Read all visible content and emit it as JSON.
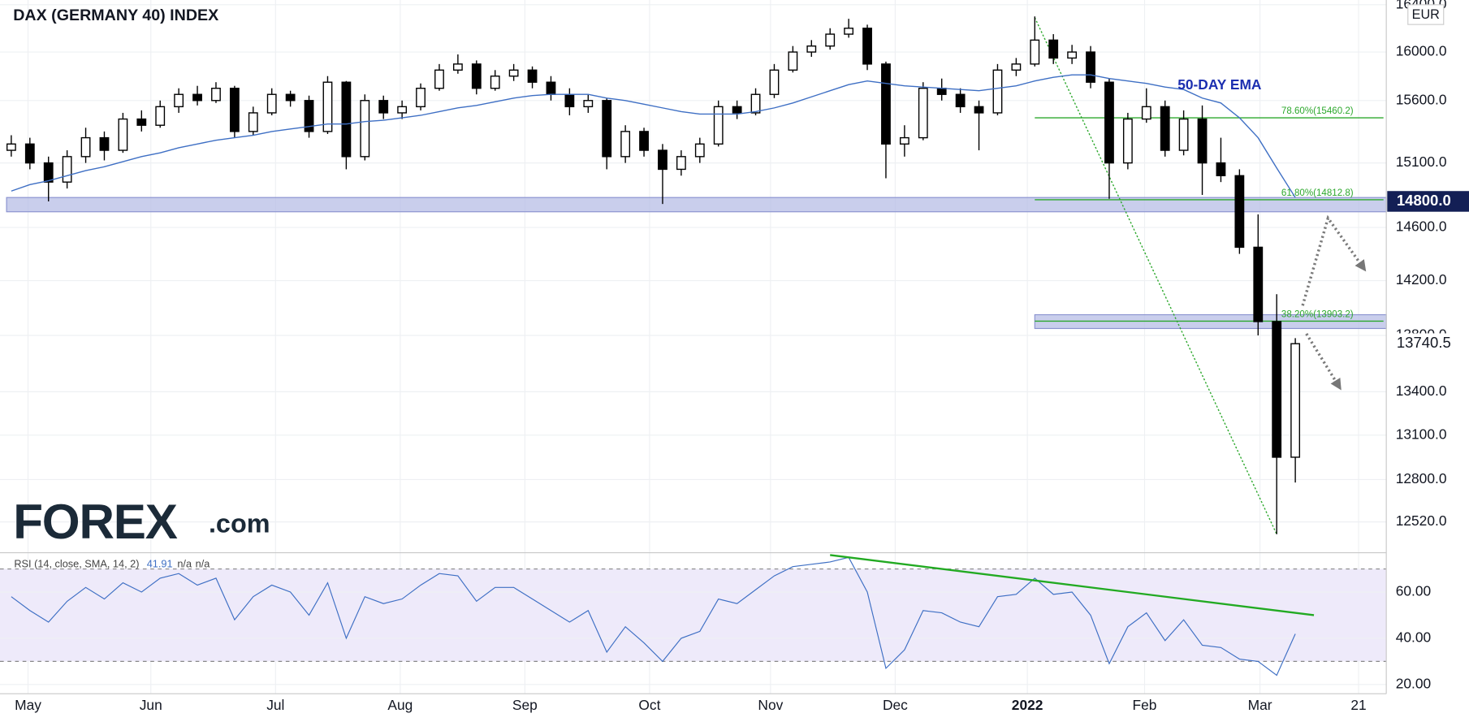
{
  "chart_data": [
    {
      "type": "candlestick",
      "title": "DAX (GERMANY 40) INDEX",
      "currency": "EUR",
      "log_scale": true,
      "grid": true,
      "categories": [
        null,
        null,
        null,
        null,
        null,
        null,
        null,
        null,
        null,
        null,
        null,
        null,
        null,
        null,
        null,
        null,
        null,
        null,
        null,
        null,
        null,
        null,
        null,
        null,
        null,
        null,
        null,
        null,
        null,
        null,
        null,
        null,
        null,
        null,
        null,
        null,
        null,
        null,
        null,
        null,
        null,
        null,
        null,
        null,
        null,
        null,
        null,
        null,
        null,
        null,
        null,
        null,
        null,
        null,
        null,
        null,
        null,
        null,
        null,
        null,
        null,
        null,
        null,
        null,
        null,
        null,
        null,
        null,
        null,
        null
      ],
      "open": [
        15200,
        15250,
        15100,
        14950,
        15150,
        15300,
        15200,
        15450,
        15400,
        15550,
        15650,
        15600,
        15700,
        15350,
        15500,
        15650,
        15600,
        15350,
        15750,
        15150,
        15600,
        15500,
        15550,
        15700,
        15850,
        15900,
        15700,
        15800,
        15850,
        15750,
        15650,
        15550,
        15600,
        15150,
        15350,
        15200,
        15050,
        15150,
        15250,
        15550,
        15500,
        15650,
        15850,
        16000,
        16050,
        16150,
        16200,
        15900,
        15250,
        15300,
        15700,
        15650,
        15550,
        15500,
        15850,
        15900,
        16100,
        15950,
        16000,
        15750,
        15100,
        15450,
        15550,
        15200,
        15450,
        15100,
        15000,
        14450,
        13900,
        12950
      ],
      "high": [
        15320,
        15300,
        15150,
        15200,
        15380,
        15350,
        15500,
        15520,
        15600,
        15700,
        15720,
        15750,
        15720,
        15550,
        15700,
        15680,
        15640,
        15800,
        15760,
        15650,
        15640,
        15600,
        15740,
        15900,
        15980,
        15930,
        15850,
        15900,
        15880,
        15800,
        15700,
        15650,
        15620,
        15400,
        15380,
        15250,
        15200,
        15300,
        15600,
        15600,
        15700,
        15900,
        16050,
        16100,
        16200,
        16280,
        16230,
        15920,
        15400,
        15750,
        15780,
        15700,
        15600,
        15900,
        15950,
        16300,
        16150,
        16060,
        16050,
        15780,
        15500,
        15700,
        15600,
        15520,
        15560,
        15300,
        15050,
        14700,
        14100,
        13780
      ],
      "low": [
        15150,
        15050,
        14800,
        14900,
        15100,
        15120,
        15180,
        15350,
        15380,
        15500,
        15560,
        15580,
        15300,
        15320,
        15480,
        15550,
        15300,
        15330,
        15050,
        15120,
        15450,
        15450,
        15520,
        15680,
        15820,
        15650,
        15680,
        15760,
        15700,
        15600,
        15480,
        15500,
        15050,
        15100,
        15150,
        14780,
        15000,
        15100,
        15230,
        15450,
        15480,
        15620,
        15830,
        15960,
        16020,
        16120,
        15850,
        14980,
        15150,
        15280,
        15600,
        15500,
        15200,
        15480,
        15800,
        15880,
        15900,
        15900,
        15700,
        14820,
        15050,
        15420,
        15150,
        15160,
        14850,
        14950,
        14400,
        13800,
        12440,
        12780
      ],
      "close": [
        15250,
        15100,
        14950,
        15150,
        15300,
        15200,
        15450,
        15400,
        15550,
        15650,
        15600,
        15700,
        15350,
        15500,
        15650,
        15600,
        15350,
        15750,
        15150,
        15600,
        15500,
        15550,
        15700,
        15850,
        15900,
        15700,
        15800,
        15850,
        15750,
        15650,
        15550,
        15600,
        15150,
        15350,
        15200,
        15050,
        15150,
        15250,
        15550,
        15500,
        15650,
        15850,
        16000,
        16050,
        16150,
        16200,
        15900,
        15250,
        15300,
        15700,
        15650,
        15550,
        15500,
        15850,
        15900,
        16100,
        15950,
        16000,
        15750,
        15100,
        15450,
        15550,
        15200,
        15450,
        15100,
        15000,
        14450,
        13900,
        12950,
        13740.5
      ],
      "series": [
        {
          "name": "50-DAY EMA",
          "color": "#3e6fc4",
          "values": [
            14880,
            14930,
            14960,
            15000,
            15040,
            15070,
            15110,
            15150,
            15180,
            15220,
            15250,
            15280,
            15300,
            15320,
            15350,
            15370,
            15390,
            15410,
            15410,
            15430,
            15440,
            15460,
            15480,
            15510,
            15540,
            15560,
            15590,
            15620,
            15640,
            15650,
            15650,
            15650,
            15620,
            15600,
            15570,
            15540,
            15510,
            15490,
            15490,
            15490,
            15510,
            15540,
            15580,
            15630,
            15680,
            15730,
            15760,
            15740,
            15720,
            15710,
            15700,
            15690,
            15680,
            15700,
            15720,
            15760,
            15790,
            15810,
            15810,
            15780,
            15760,
            15740,
            15710,
            15690,
            15620,
            15580,
            15460,
            15300,
            15060,
            14830
          ]
        }
      ],
      "ylim": [
        12320,
        16440
      ],
      "yticks": [
        {
          "value": 16400,
          "label": "16400.0"
        },
        {
          "value": 16000,
          "label": "16000.0"
        },
        {
          "value": 15600,
          "label": "15600.0"
        },
        {
          "value": 15100,
          "label": "15100.0"
        },
        {
          "value": 14600,
          "label": "14600.0"
        },
        {
          "value": 14200,
          "label": "14200.0"
        },
        {
          "value": 13800,
          "label": "13800.0"
        },
        {
          "value": 13400,
          "label": "13400.0"
        },
        {
          "value": 13100,
          "label": "13100.0"
        },
        {
          "value": 12800,
          "label": "12800.0"
        },
        {
          "value": 12520,
          "label": "12520.0"
        }
      ],
      "zones": [
        {
          "from": 0,
          "low": 14720,
          "high": 14830
        },
        {
          "from": 55,
          "low": 13850,
          "high": 13950
        }
      ],
      "fib_levels": [
        {
          "value": 15460.2,
          "label": "78.60%(15460.2)"
        },
        {
          "value": 14812.8,
          "label": "61.80%(14812.8)"
        },
        {
          "value": 13903.2,
          "label": "38.20%(13903.2)"
        }
      ],
      "trendline": {
        "from": [
          55,
          16290
        ],
        "to": [
          68,
          12440
        ]
      },
      "price_labels": [
        {
          "value": 14800,
          "label": "14800.0"
        },
        {
          "value": 13740.5,
          "label": "13740.5"
        }
      ],
      "logo": {
        "brand": "FOREX",
        "suffix": ".com"
      }
    },
    {
      "type": "line",
      "title": "RSI (14, close, SMA, 14, 2)",
      "extra_labels": [
        "n/a",
        "n/a"
      ],
      "series": [
        {
          "name": "RSI",
          "color": "#3e6fc4",
          "values": [
            58,
            52,
            47,
            56,
            62,
            57,
            64,
            60,
            66,
            68,
            63,
            66,
            48,
            58,
            63,
            60,
            50,
            64,
            40,
            58,
            55,
            57,
            63,
            68,
            67,
            56,
            62,
            62,
            57,
            52,
            47,
            52,
            34,
            45,
            38,
            30,
            40,
            43,
            57,
            55,
            61,
            67,
            71,
            72,
            73,
            75,
            60,
            27,
            35,
            52,
            51,
            47,
            45,
            58,
            59,
            66,
            59,
            60,
            50,
            29,
            45,
            51,
            39,
            48,
            37,
            36,
            31,
            30,
            24,
            41.91
          ]
        }
      ],
      "levels": [
        70,
        30
      ],
      "ylim": [
        16,
        77
      ],
      "yticks": [
        {
          "value": 60,
          "label": "60.00"
        },
        {
          "value": 40,
          "label": "40.00"
        },
        {
          "value": 20,
          "label": "20.00"
        }
      ],
      "trendline": {
        "from": [
          44,
          76
        ],
        "to": [
          70,
          50
        ]
      },
      "xticks": [
        {
          "value": 0.9,
          "label": "May"
        },
        {
          "value": 7.5,
          "label": "Jun"
        },
        {
          "value": 14.2,
          "label": "Jul"
        },
        {
          "value": 20.9,
          "label": "Aug"
        },
        {
          "value": 27.6,
          "label": "Sep"
        },
        {
          "value": 34.3,
          "label": "Oct"
        },
        {
          "value": 40.8,
          "label": "Nov"
        },
        {
          "value": 47.5,
          "label": "Dec"
        },
        {
          "value": 54.6,
          "label": "2022"
        },
        {
          "value": 60.9,
          "label": "Feb"
        },
        {
          "value": 67.1,
          "label": "Mar"
        },
        {
          "value": 72.4,
          "label": "21"
        }
      ]
    }
  ]
}
